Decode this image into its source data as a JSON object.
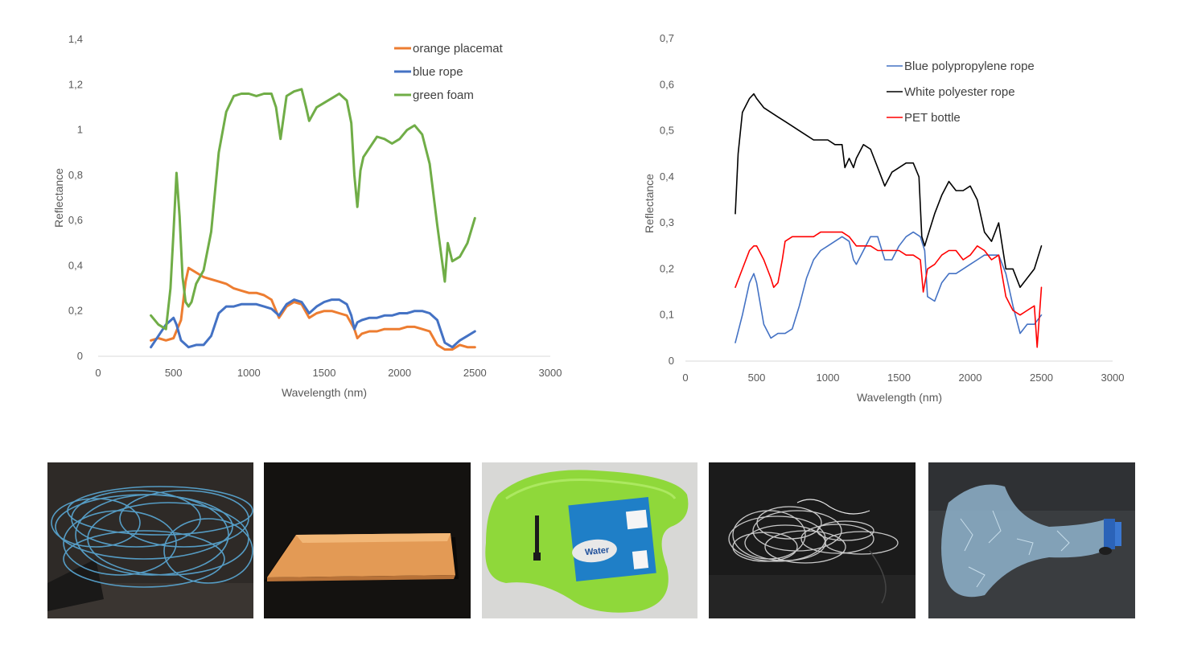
{
  "chart_data": [
    {
      "type": "line",
      "title": "",
      "xlabel": "Wavelength (nm)",
      "ylabel": "Reflectance",
      "xlim": [
        0,
        3000
      ],
      "ylim": [
        0,
        1.4
      ],
      "x_ticks": [
        "0",
        "500",
        "1000",
        "1500",
        "2000",
        "2500",
        "3000"
      ],
      "y_ticks": [
        "0",
        "0,2",
        "0,4",
        "0,6",
        "0,8",
        "1",
        "1,2",
        "1,4"
      ],
      "grid": false,
      "legend_position": "top-right",
      "series": [
        {
          "name": "orange placemat",
          "color": "#ED7D31",
          "x": [
            350,
            400,
            450,
            500,
            550,
            580,
            600,
            650,
            700,
            750,
            800,
            850,
            900,
            950,
            1000,
            1050,
            1100,
            1150,
            1200,
            1250,
            1300,
            1350,
            1400,
            1450,
            1500,
            1550,
            1600,
            1650,
            1700,
            1720,
            1750,
            1800,
            1850,
            1900,
            1950,
            2000,
            2050,
            2100,
            2150,
            2200,
            2250,
            2300,
            2350,
            2400,
            2450,
            2500
          ],
          "y": [
            0.07,
            0.08,
            0.07,
            0.08,
            0.16,
            0.33,
            0.39,
            0.37,
            0.35,
            0.34,
            0.33,
            0.32,
            0.3,
            0.29,
            0.28,
            0.28,
            0.27,
            0.25,
            0.17,
            0.22,
            0.24,
            0.23,
            0.17,
            0.19,
            0.2,
            0.2,
            0.19,
            0.18,
            0.12,
            0.08,
            0.1,
            0.11,
            0.11,
            0.12,
            0.12,
            0.12,
            0.13,
            0.13,
            0.12,
            0.11,
            0.05,
            0.03,
            0.03,
            0.05,
            0.04,
            0.04
          ]
        },
        {
          "name": "blue rope",
          "color": "#4472C4",
          "x": [
            350,
            400,
            450,
            500,
            520,
            550,
            600,
            650,
            700,
            750,
            800,
            850,
            900,
            950,
            1000,
            1050,
            1100,
            1150,
            1200,
            1250,
            1300,
            1350,
            1400,
            1450,
            1500,
            1550,
            1600,
            1650,
            1680,
            1700,
            1720,
            1750,
            1800,
            1850,
            1900,
            1950,
            2000,
            2050,
            2100,
            2150,
            2200,
            2250,
            2300,
            2350,
            2400,
            2450,
            2500
          ],
          "y": [
            0.04,
            0.09,
            0.14,
            0.17,
            0.14,
            0.07,
            0.04,
            0.05,
            0.05,
            0.09,
            0.19,
            0.22,
            0.22,
            0.23,
            0.23,
            0.23,
            0.22,
            0.21,
            0.18,
            0.23,
            0.25,
            0.24,
            0.19,
            0.22,
            0.24,
            0.25,
            0.25,
            0.23,
            0.18,
            0.12,
            0.15,
            0.16,
            0.17,
            0.17,
            0.18,
            0.18,
            0.19,
            0.19,
            0.2,
            0.2,
            0.19,
            0.16,
            0.06,
            0.04,
            0.07,
            0.09,
            0.11
          ]
        },
        {
          "name": "green foam",
          "color": "#70AD47",
          "x": [
            350,
            400,
            450,
            480,
            500,
            520,
            540,
            560,
            580,
            600,
            620,
            650,
            700,
            750,
            800,
            850,
            900,
            950,
            1000,
            1050,
            1100,
            1150,
            1180,
            1210,
            1250,
            1300,
            1350,
            1380,
            1400,
            1450,
            1500,
            1550,
            1600,
            1650,
            1680,
            1700,
            1720,
            1740,
            1760,
            1800,
            1850,
            1900,
            1950,
            2000,
            2050,
            2100,
            2150,
            2200,
            2250,
            2300,
            2320,
            2350,
            2400,
            2450,
            2500
          ],
          "y": [
            0.18,
            0.14,
            0.12,
            0.3,
            0.55,
            0.81,
            0.62,
            0.35,
            0.24,
            0.22,
            0.24,
            0.32,
            0.38,
            0.55,
            0.9,
            1.08,
            1.15,
            1.16,
            1.16,
            1.15,
            1.16,
            1.16,
            1.1,
            0.96,
            1.15,
            1.17,
            1.18,
            1.1,
            1.04,
            1.1,
            1.12,
            1.14,
            1.16,
            1.13,
            1.03,
            0.8,
            0.66,
            0.82,
            0.88,
            0.92,
            0.97,
            0.96,
            0.94,
            0.96,
            1.0,
            1.02,
            0.98,
            0.85,
            0.58,
            0.33,
            0.5,
            0.42,
            0.44,
            0.5,
            0.61
          ]
        }
      ]
    },
    {
      "type": "line",
      "title": "",
      "xlabel": "Wavelength (nm)",
      "ylabel": "Reflectance",
      "xlim": [
        0,
        3000
      ],
      "ylim": [
        0,
        0.7
      ],
      "x_ticks": [
        "0",
        "500",
        "1000",
        "1500",
        "2000",
        "2500",
        "3000"
      ],
      "y_ticks": [
        "0",
        "0,1",
        "0,2",
        "0,3",
        "0,4",
        "0,5",
        "0,6",
        "0,7"
      ],
      "grid": false,
      "legend_position": "top-right",
      "series": [
        {
          "name": "Blue polypropylene rope",
          "color": "#4472C4",
          "x": [
            350,
            400,
            450,
            480,
            500,
            550,
            600,
            650,
            700,
            750,
            800,
            850,
            900,
            950,
            1000,
            1050,
            1100,
            1150,
            1180,
            1200,
            1250,
            1300,
            1350,
            1400,
            1450,
            1500,
            1550,
            1600,
            1650,
            1680,
            1700,
            1750,
            1800,
            1850,
            1900,
            1950,
            2000,
            2050,
            2100,
            2150,
            2200,
            2250,
            2300,
            2350,
            2400,
            2450,
            2500
          ],
          "y": [
            0.04,
            0.1,
            0.17,
            0.19,
            0.17,
            0.08,
            0.05,
            0.06,
            0.06,
            0.07,
            0.12,
            0.18,
            0.22,
            0.24,
            0.25,
            0.26,
            0.27,
            0.26,
            0.22,
            0.21,
            0.24,
            0.27,
            0.27,
            0.22,
            0.22,
            0.25,
            0.27,
            0.28,
            0.27,
            0.24,
            0.14,
            0.13,
            0.17,
            0.19,
            0.19,
            0.2,
            0.21,
            0.22,
            0.23,
            0.23,
            0.23,
            0.19,
            0.12,
            0.06,
            0.08,
            0.08,
            0.1
          ]
        },
        {
          "name": "White polyester rope",
          "color": "#000000",
          "x": [
            350,
            370,
            400,
            450,
            480,
            500,
            550,
            600,
            650,
            700,
            750,
            800,
            850,
            900,
            950,
            1000,
            1050,
            1100,
            1120,
            1150,
            1180,
            1200,
            1250,
            1300,
            1350,
            1400,
            1450,
            1500,
            1550,
            1600,
            1640,
            1660,
            1680,
            1700,
            1750,
            1800,
            1850,
            1900,
            1950,
            2000,
            2050,
            2100,
            2150,
            2200,
            2250,
            2300,
            2350,
            2400,
            2450,
            2500
          ],
          "y": [
            0.32,
            0.45,
            0.54,
            0.57,
            0.58,
            0.57,
            0.55,
            0.54,
            0.53,
            0.52,
            0.51,
            0.5,
            0.49,
            0.48,
            0.48,
            0.48,
            0.47,
            0.47,
            0.42,
            0.44,
            0.42,
            0.44,
            0.47,
            0.46,
            0.42,
            0.38,
            0.41,
            0.42,
            0.43,
            0.43,
            0.4,
            0.27,
            0.25,
            0.27,
            0.32,
            0.36,
            0.39,
            0.37,
            0.37,
            0.38,
            0.35,
            0.28,
            0.26,
            0.3,
            0.2,
            0.2,
            0.16,
            0.18,
            0.2,
            0.25
          ]
        },
        {
          "name": "PET bottle",
          "color": "#FF0000",
          "x": [
            350,
            400,
            450,
            480,
            500,
            550,
            600,
            620,
            650,
            680,
            700,
            750,
            800,
            850,
            900,
            950,
            1000,
            1050,
            1100,
            1150,
            1200,
            1250,
            1300,
            1350,
            1400,
            1450,
            1500,
            1550,
            1600,
            1650,
            1670,
            1700,
            1750,
            1800,
            1850,
            1900,
            1950,
            2000,
            2050,
            2100,
            2150,
            2200,
            2250,
            2300,
            2350,
            2400,
            2450,
            2470,
            2500
          ],
          "y": [
            0.16,
            0.2,
            0.24,
            0.25,
            0.25,
            0.22,
            0.18,
            0.16,
            0.17,
            0.22,
            0.26,
            0.27,
            0.27,
            0.27,
            0.27,
            0.28,
            0.28,
            0.28,
            0.28,
            0.27,
            0.25,
            0.25,
            0.25,
            0.24,
            0.24,
            0.24,
            0.24,
            0.23,
            0.23,
            0.22,
            0.15,
            0.2,
            0.21,
            0.23,
            0.24,
            0.24,
            0.22,
            0.23,
            0.25,
            0.24,
            0.22,
            0.23,
            0.14,
            0.11,
            0.1,
            0.11,
            0.12,
            0.03,
            0.16
          ]
        }
      ]
    }
  ],
  "photos": [
    {
      "subject": "blue polypropylene rope",
      "background": "#2e2a27",
      "accent": "#5aa9d6"
    },
    {
      "subject": "orange placemat",
      "background": "#1a1613",
      "accent": "#e39a55"
    },
    {
      "subject": "green foam",
      "background": "#d8d8d6",
      "accent": "#8fd83a"
    },
    {
      "subject": "white polyester rope",
      "background": "#1b1b1b",
      "accent": "#e8e8e8"
    },
    {
      "subject": "PET bottle",
      "background": "#3a3d40",
      "accent": "#8fb3cc"
    }
  ]
}
